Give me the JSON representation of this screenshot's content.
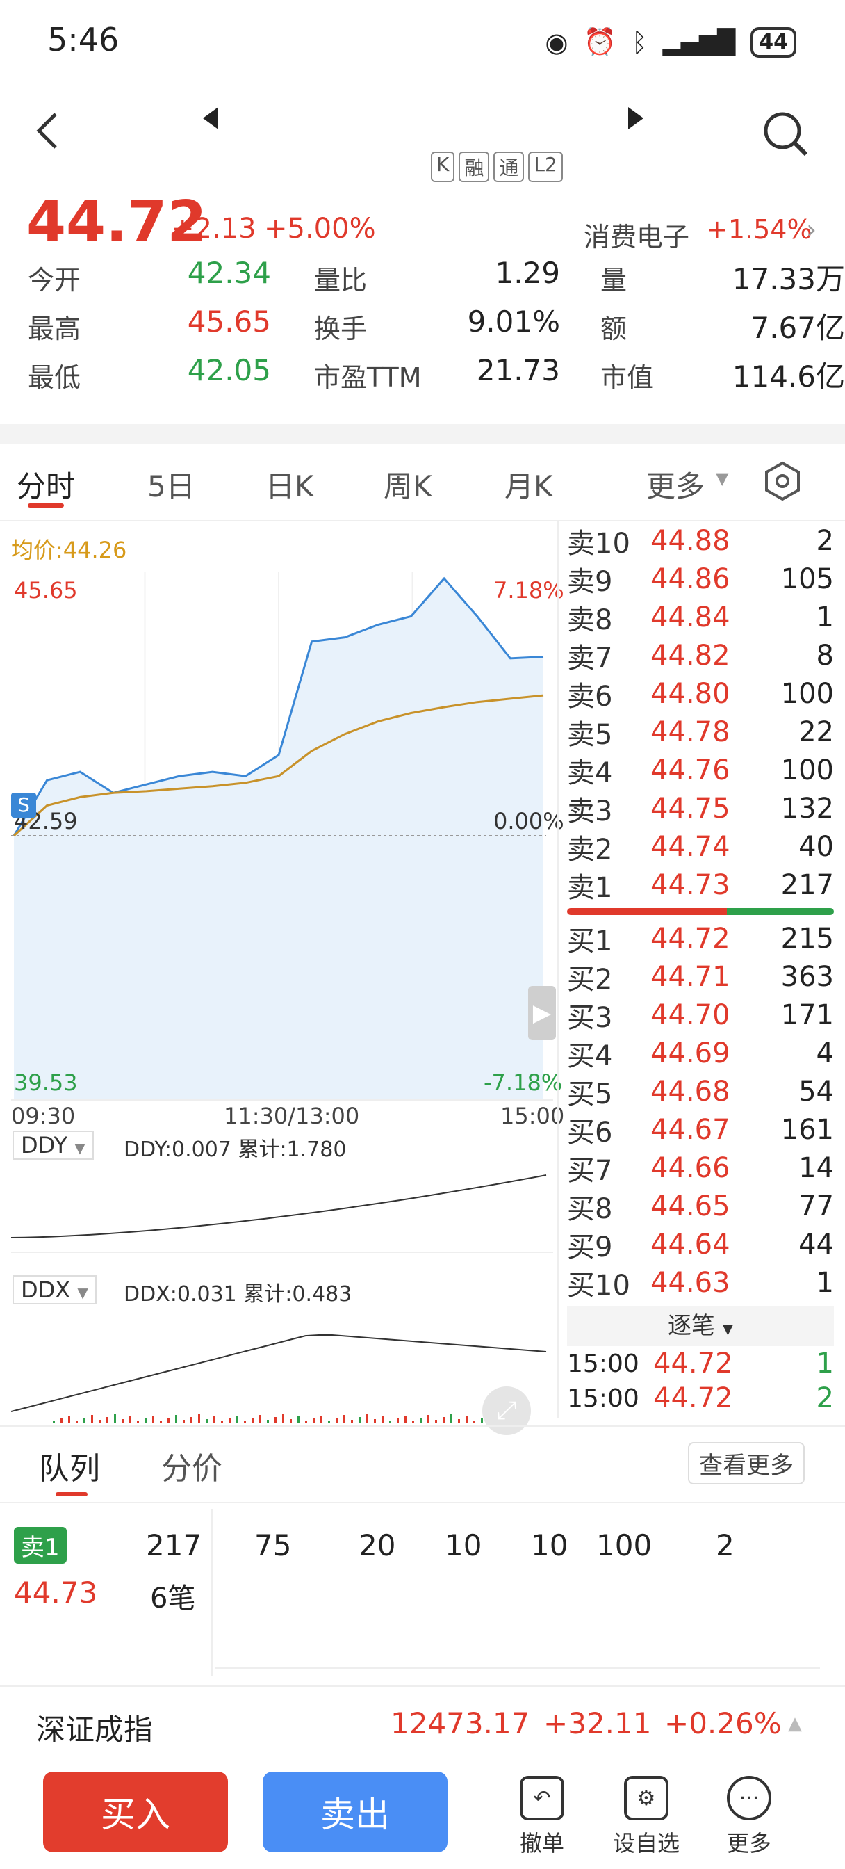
{
  "status_bar": {
    "time": "5:46",
    "battery": "44"
  },
  "nav": {
    "back_icon": "back-arrow-icon",
    "prev_icon": "triangle-left-icon",
    "next_icon": "triangle-right-icon",
    "search_icon": "search-icon",
    "tags": [
      "K",
      "融",
      "通",
      "L2"
    ]
  },
  "quote": {
    "price": "44.72",
    "change": "+2.13",
    "change_pct": "+5.00%",
    "sector_name": "消费电子",
    "sector_pct": "+1.54%",
    "stats": [
      {
        "label": "今开",
        "value": "42.34",
        "color": "green"
      },
      {
        "label": "量比",
        "value": "1.29",
        "color": "black"
      },
      {
        "label": "量",
        "value": "17.33万",
        "color": "black"
      },
      {
        "label": "最高",
        "value": "45.65",
        "color": "red"
      },
      {
        "label": "换手",
        "value": "9.01%",
        "color": "black"
      },
      {
        "label": "额",
        "value": "7.67亿",
        "color": "black"
      },
      {
        "label": "最低",
        "value": "42.05",
        "color": "green"
      },
      {
        "label": "市盈TTM",
        "value": "21.73",
        "color": "black"
      },
      {
        "label": "市值",
        "value": "114.6亿",
        "color": "black"
      }
    ]
  },
  "chart_tabs": {
    "items": [
      "分时",
      "5日",
      "日K",
      "周K",
      "月K",
      "更多"
    ],
    "active": "分时",
    "settings_icon": "hexagon-settings-icon"
  },
  "intraday": {
    "avg_label": "均价:44.26",
    "y_high": "45.65",
    "y_low": "39.53",
    "pct_high": "7.18%",
    "pct_low": "-7.18%",
    "prev_close": "42.59",
    "pct_zero": "0.00%",
    "x_labels": [
      "09:30",
      "11:30/13:00",
      "15:00"
    ],
    "s_marker": "S"
  },
  "chart_data": [
    {
      "type": "line",
      "x": [
        "09:30",
        "09:45",
        "10:00",
        "10:15",
        "10:30",
        "10:45",
        "11:00",
        "11:15",
        "11:30",
        "13:15",
        "13:30",
        "13:45",
        "14:00",
        "14:15",
        "14:30",
        "14:45",
        "15:00"
      ],
      "series": [
        {
          "values": [
            42.59,
            43.25,
            43.35,
            43.1,
            43.2,
            43.3,
            43.35,
            43.3,
            43.55,
            44.9,
            44.95,
            45.1,
            45.2,
            45.65,
            45.2,
            44.7,
            44.72
          ]
        },
        {
          "values": [
            42.59,
            42.95,
            43.05,
            43.1,
            43.12,
            43.15,
            43.18,
            43.22,
            43.3,
            43.6,
            43.8,
            43.95,
            44.05,
            44.12,
            44.18,
            44.22,
            44.26
          ]
        }
      ],
      "ylim": [
        39.53,
        45.65
      ]
    }
  ],
  "ddy": {
    "selector": "DDY",
    "value": "DDY:0.007",
    "cumulative": "累计:1.780"
  },
  "ddx": {
    "selector": "DDX",
    "value": "DDX:0.031",
    "cumulative": "累计:0.483"
  },
  "orderbook": {
    "asks": [
      {
        "label": "卖10",
        "price": "44.88",
        "qty": "2"
      },
      {
        "label": "卖9",
        "price": "44.86",
        "qty": "105"
      },
      {
        "label": "卖8",
        "price": "44.84",
        "qty": "1"
      },
      {
        "label": "卖7",
        "price": "44.82",
        "qty": "8"
      },
      {
        "label": "卖6",
        "price": "44.80",
        "qty": "100"
      },
      {
        "label": "卖5",
        "price": "44.78",
        "qty": "22"
      },
      {
        "label": "卖4",
        "price": "44.76",
        "qty": "100"
      },
      {
        "label": "卖3",
        "price": "44.75",
        "qty": "132"
      },
      {
        "label": "卖2",
        "price": "44.74",
        "qty": "40"
      },
      {
        "label": "卖1",
        "price": "44.73",
        "qty": "217"
      }
    ],
    "bids": [
      {
        "label": "买1",
        "price": "44.72",
        "qty": "215"
      },
      {
        "label": "买2",
        "price": "44.71",
        "qty": "363"
      },
      {
        "label": "买3",
        "price": "44.70",
        "qty": "171"
      },
      {
        "label": "买4",
        "price": "44.69",
        "qty": "4"
      },
      {
        "label": "买5",
        "price": "44.68",
        "qty": "54"
      },
      {
        "label": "买6",
        "price": "44.67",
        "qty": "161"
      },
      {
        "label": "买7",
        "price": "44.66",
        "qty": "14"
      },
      {
        "label": "买8",
        "price": "44.65",
        "qty": "77"
      },
      {
        "label": "买9",
        "price": "44.64",
        "qty": "44"
      },
      {
        "label": "买10",
        "price": "44.63",
        "qty": "1"
      }
    ],
    "ticks_label": "逐笔",
    "ticks": [
      {
        "time": "15:00",
        "price": "44.72",
        "qty": "1"
      },
      {
        "time": "15:00",
        "price": "44.72",
        "qty": "2"
      }
    ]
  },
  "queue": {
    "tabs": [
      "队列",
      "分价"
    ],
    "more": "查看更多",
    "badge": "卖1",
    "price": "44.73",
    "total": "217",
    "count": "6笔",
    "orders": [
      "75",
      "20",
      "10",
      "10",
      "100",
      "2"
    ]
  },
  "index_bar": {
    "name": "深证成指",
    "value": "12473.17",
    "change": "+32.11",
    "pct": "+0.26%"
  },
  "bottom": {
    "buy": "买入",
    "sell": "卖出",
    "tools": [
      "撤单",
      "设自选",
      "更多"
    ]
  }
}
